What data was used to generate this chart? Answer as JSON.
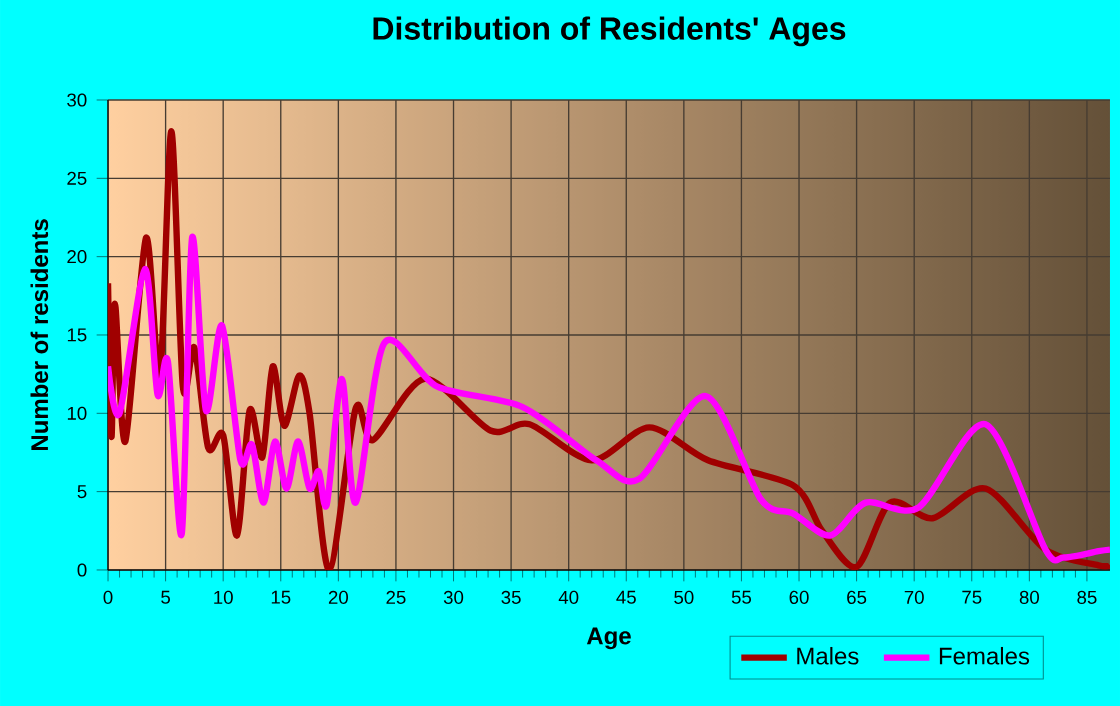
{
  "chart_data": {
    "type": "line",
    "title": "Distribution of Residents' Ages",
    "xlabel": "Age",
    "ylabel": "Number of residents",
    "xlim": [
      0,
      87
    ],
    "ylim": [
      0,
      30
    ],
    "xticks": [
      0,
      5,
      10,
      15,
      20,
      25,
      30,
      35,
      40,
      45,
      50,
      55,
      60,
      65,
      70,
      75,
      80,
      85
    ],
    "yticks": [
      0,
      5,
      10,
      15,
      20,
      25,
      30
    ],
    "grid": true,
    "legend": "bottom right",
    "marker": "none",
    "line_style": "solid",
    "series": [
      {
        "name": "Males",
        "color": "#a00000",
        "x": [
          0,
          0.3,
          0.6,
          1.5,
          3.3,
          4.5,
          5.5,
          6.5,
          7.5,
          8.7,
          10,
          11.2,
          12.3,
          13.4,
          14.3,
          15.3,
          16.6,
          17.5,
          19.2,
          21.5,
          23,
          27.5,
          33.2,
          36.6,
          42,
          47,
          52.1,
          59.5,
          62,
          65,
          67.9,
          71.6,
          76.2,
          81.4,
          86,
          87
        ],
        "values": [
          18.3,
          8.5,
          17,
          8.2,
          21.2,
          12.2,
          28,
          11.7,
          14.2,
          7.8,
          8.6,
          2.2,
          10.2,
          7.2,
          13,
          9.2,
          12.4,
          10,
          0,
          10.3,
          8.3,
          12.2,
          8.9,
          9.3,
          7,
          9.1,
          7,
          5.4,
          2.5,
          0.2,
          4.3,
          3.3,
          5.2,
          1.3,
          0.3,
          0.3
        ]
      },
      {
        "name": "Females",
        "color": "#ff00ff",
        "x": [
          0,
          1,
          3.2,
          4.3,
          5.2,
          6.4,
          7.3,
          8.5,
          9.9,
          11.5,
          12.5,
          13.5,
          14.5,
          15.5,
          16.5,
          17.5,
          18.3,
          19,
          20.3,
          21.5,
          24,
          28.6,
          36,
          42.4,
          46.1,
          51.9,
          56.7,
          59.5,
          62.7,
          65.8,
          70.4,
          76.2,
          81.4,
          83,
          86,
          87
        ],
        "values": [
          13,
          10,
          19.2,
          11.2,
          13.3,
          2.3,
          21.2,
          10.2,
          15.6,
          7,
          8,
          4.3,
          8.2,
          5.2,
          8.2,
          5.2,
          6.3,
          4.2,
          12.2,
          4.3,
          14.5,
          11.7,
          10.4,
          7,
          5.8,
          11.1,
          4.5,
          3.6,
          2.2,
          4.3,
          4,
          9.3,
          1.3,
          0.8,
          1.2,
          1.3
        ]
      }
    ]
  }
}
